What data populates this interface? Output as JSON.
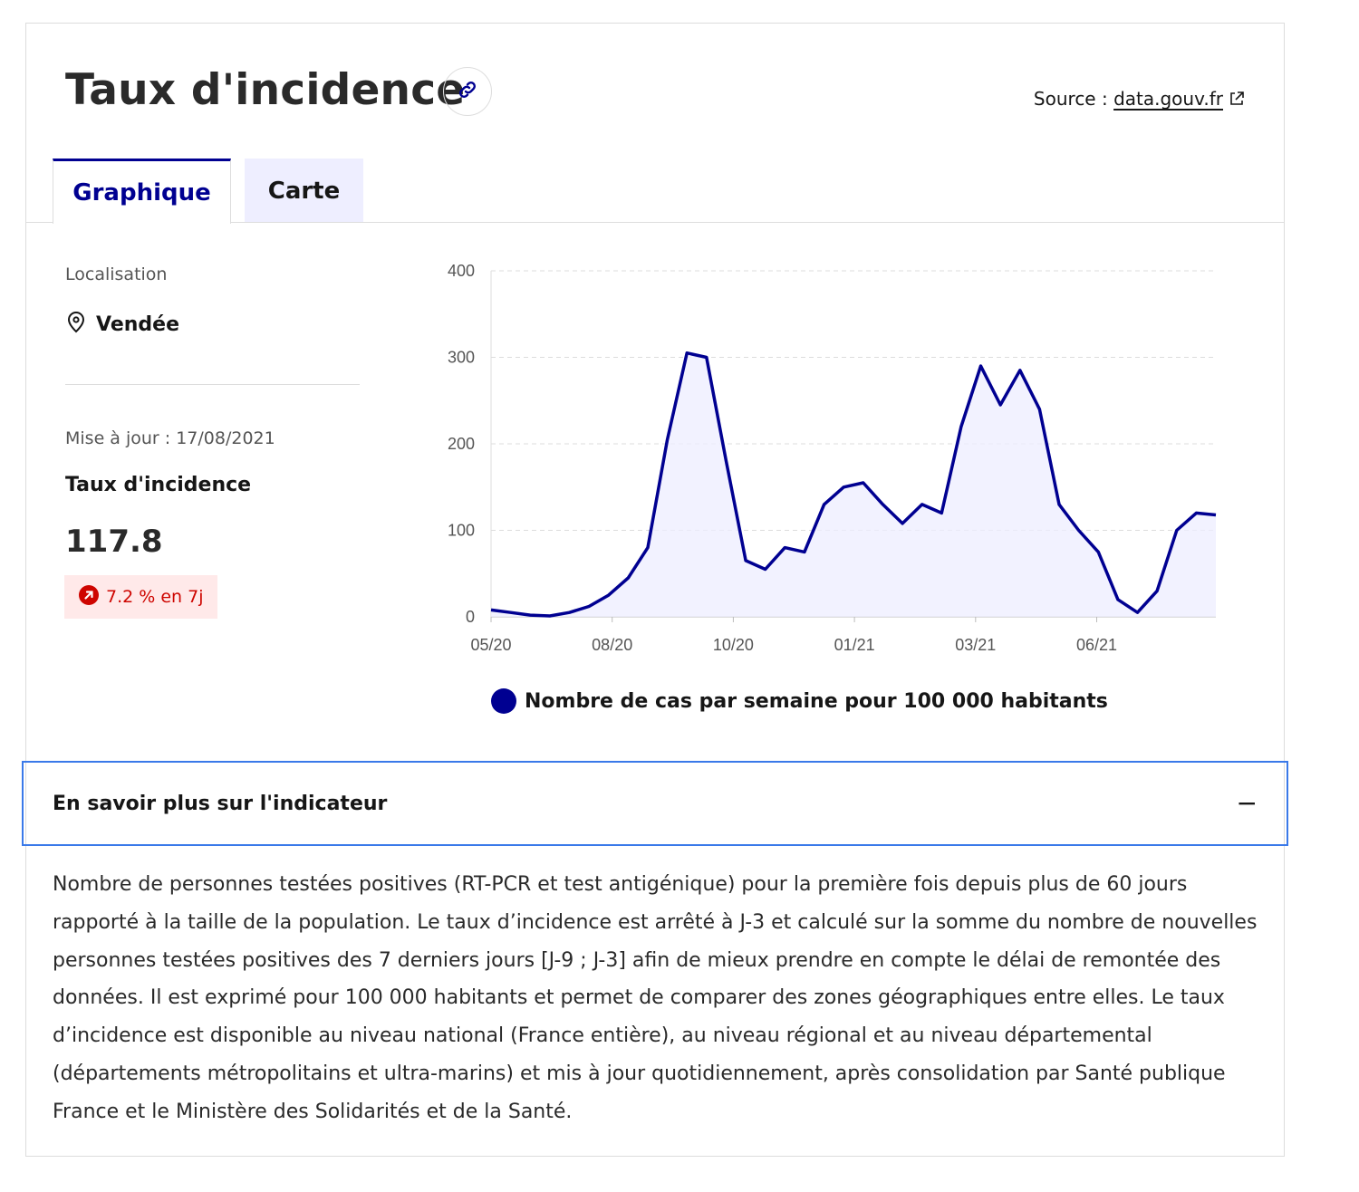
{
  "header": {
    "title": "Taux d'incidence",
    "link_icon": "link-icon",
    "source_prefix": "Source : ",
    "source_link": "data.gouv.fr",
    "external_icon": "external-link-icon"
  },
  "tabs": [
    {
      "label": "Graphique",
      "active": true
    },
    {
      "label": "Carte",
      "active": false
    }
  ],
  "sidebar": {
    "location_label": "Localisation",
    "location_icon": "map-pin-icon",
    "location_value": "Vendée",
    "update_text": "Mise à jour : 17/08/2021",
    "rate_label": "Taux d'incidence",
    "rate_value": "117.8",
    "change_icon": "arrow-up-right-icon",
    "change_text": "7.2 % en 7j"
  },
  "colors": {
    "accent": "#000091",
    "tab_inactive_bg": "#eeeeff",
    "badge_bg": "#ffe9e9",
    "badge_text": "#ce0500",
    "focus_border": "#3a79e9"
  },
  "accordion": {
    "title": "En savoir plus sur l'indicateur",
    "toggle_symbol": "−",
    "expanded": true,
    "description": "Nombre de personnes testées positives (RT-PCR et test antigénique) pour la première fois depuis plus de 60 jours rapporté à la taille de la population. Le taux d’incidence est arrêté à J-3 et calculé sur la somme du nombre de nouvelles personnes testées positives des 7 derniers jours [J-9 ; J-3] afin de mieux prendre en compte le délai de remontée des données. Il est exprimé pour 100 000 habitants et permet de comparer des zones géographiques entre elles. Le taux d’incidence est disponible au niveau national (France entière), au niveau régional et au niveau départemental (départements métropolitains et ultra-marins) et mis à jour quotidiennement, après consolidation par Santé publique France et le Ministère des Solidarités et de la Santé."
  },
  "chart_data": {
    "type": "area",
    "ylim": [
      0,
      400
    ],
    "yticks": [
      "0",
      "100",
      "200",
      "300",
      "400"
    ],
    "xticks": [
      "05/20",
      "08/20",
      "10/20",
      "01/21",
      "03/21",
      "06/21"
    ],
    "grid": true,
    "legend_position": "bottom",
    "series": [
      {
        "name": "Nombre de cas par semaine pour 100 000 habitants",
        "color": "#000091",
        "x": [
          "05/20",
          "06/20",
          "07/20",
          "08/20",
          "09/20",
          "09/20",
          "10/20",
          "10/20",
          "10/20",
          "11/20",
          "11/20",
          "11/20",
          "12/20",
          "12/20",
          "12/20",
          "01/21",
          "01/21",
          "01/21",
          "02/21",
          "02/21",
          "02/21",
          "03/21",
          "03/21",
          "03/21",
          "04/21",
          "04/21",
          "04/21",
          "05/21",
          "05/21",
          "05/21",
          "06/21",
          "06/21",
          "06/21",
          "07/21",
          "07/21",
          "07/21",
          "08/21",
          "08/21"
        ],
        "y": [
          8,
          5,
          2,
          1,
          5,
          12,
          25,
          45,
          80,
          205,
          305,
          300,
          180,
          65,
          55,
          80,
          75,
          130,
          150,
          155,
          130,
          108,
          130,
          120,
          220,
          290,
          245,
          285,
          240,
          130,
          100,
          75,
          20,
          5,
          30,
          100,
          120,
          117.8
        ]
      }
    ]
  }
}
